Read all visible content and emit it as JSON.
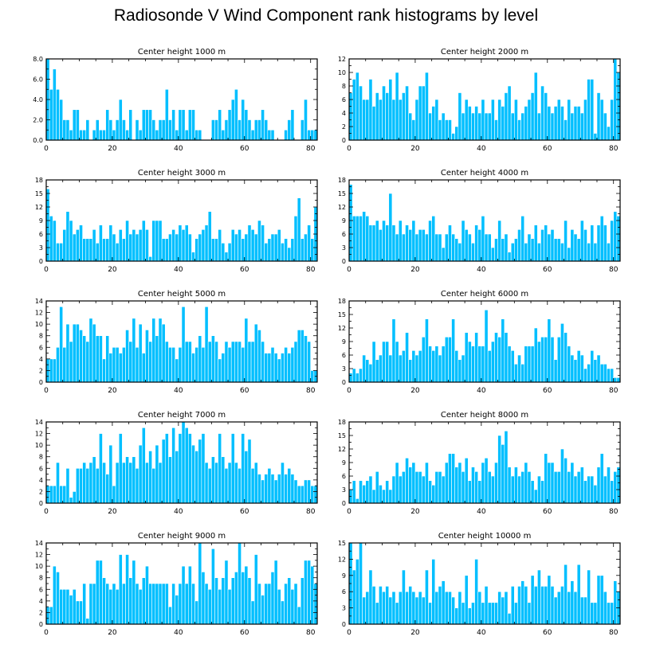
{
  "figure": {
    "title": "Radiosonde V Wind Component rank histograms by level"
  },
  "colors": {
    "bar": "#00BFFF",
    "bar_edge": "#FFFFFF",
    "axis": "#000000"
  },
  "chart_data": [
    {
      "type": "bar",
      "title": "Center height 1000 m",
      "xlabel": "",
      "ylabel": "",
      "xlim": [
        0,
        82
      ],
      "ylim": [
        0,
        8
      ],
      "xticks": [
        "0",
        "20",
        "40",
        "60",
        "80"
      ],
      "yticks": [
        "0.0",
        "2.0",
        "4.0",
        "6.0",
        "8.0"
      ],
      "values": [
        8,
        5,
        7,
        5,
        4,
        2,
        2,
        1,
        3,
        3,
        1,
        1,
        2,
        0,
        1,
        2,
        1,
        1,
        3,
        2,
        1,
        2,
        4,
        2,
        1,
        3,
        0,
        2,
        1,
        3,
        3,
        3,
        2,
        1,
        2,
        2,
        5,
        2,
        3,
        1,
        3,
        3,
        1,
        3,
        3,
        1,
        1,
        0,
        0,
        0,
        2,
        2,
        3,
        1,
        2,
        3,
        4,
        5,
        2,
        4,
        3,
        2,
        1,
        2,
        2,
        3,
        2,
        1,
        1,
        0,
        0,
        0,
        1,
        2,
        3,
        0,
        0,
        2,
        4,
        1,
        1,
        1
      ]
    },
    {
      "type": "bar",
      "title": "Center height 2000 m",
      "xlabel": "",
      "ylabel": "",
      "xlim": [
        0,
        82
      ],
      "ylim": [
        0,
        12
      ],
      "xticks": [
        "0",
        "20",
        "40",
        "60",
        "80"
      ],
      "yticks": [
        "0",
        "2",
        "4",
        "6",
        "8",
        "10",
        "12"
      ],
      "values": [
        7,
        9,
        10,
        8,
        6,
        6,
        9,
        5,
        7,
        6,
        8,
        7,
        9,
        6,
        10,
        6,
        7,
        8,
        4,
        3,
        6,
        8,
        8,
        10,
        4,
        5,
        6,
        3,
        4,
        3,
        3,
        1,
        2,
        7,
        4,
        6,
        5,
        4,
        5,
        4,
        6,
        4,
        4,
        6,
        3,
        6,
        5,
        7,
        8,
        4,
        6,
        3,
        4,
        5,
        6,
        7,
        10,
        4,
        8,
        7,
        5,
        4,
        5,
        6,
        5,
        3,
        6,
        4,
        5,
        5,
        4,
        6,
        9,
        9,
        1,
        7,
        6,
        4,
        2,
        6,
        12,
        10
      ]
    },
    {
      "type": "bar",
      "title": "Center height 3000 m",
      "xlabel": "",
      "ylabel": "",
      "xlim": [
        0,
        82
      ],
      "ylim": [
        0,
        18
      ],
      "xticks": [
        "0",
        "20",
        "40",
        "60",
        "80"
      ],
      "yticks": [
        "0",
        "3",
        "6",
        "9",
        "12",
        "15",
        "18"
      ],
      "values": [
        16,
        10,
        9,
        4,
        4,
        7,
        11,
        9,
        6,
        7,
        8,
        5,
        5,
        5,
        7,
        4,
        8,
        5,
        5,
        8,
        6,
        4,
        7,
        5,
        9,
        6,
        7,
        6,
        7,
        9,
        7,
        1,
        9,
        9,
        9,
        5,
        5,
        6,
        7,
        6,
        8,
        7,
        8,
        6,
        2,
        5,
        6,
        7,
        8,
        11,
        5,
        5,
        7,
        4,
        2,
        4,
        7,
        6,
        7,
        5,
        6,
        8,
        7,
        6,
        9,
        8,
        4,
        5,
        6,
        6,
        7,
        4,
        5,
        3,
        5,
        10,
        14,
        5,
        6,
        8,
        5,
        12
      ]
    },
    {
      "type": "bar",
      "title": "Center height 4000 m",
      "xlabel": "",
      "ylabel": "",
      "xlim": [
        0,
        82
      ],
      "ylim": [
        0,
        18
      ],
      "xticks": [
        "0",
        "20",
        "40",
        "60",
        "80"
      ],
      "yticks": [
        "0",
        "3",
        "6",
        "9",
        "12",
        "15",
        "18"
      ],
      "values": [
        17,
        10,
        10,
        10,
        11,
        10,
        8,
        8,
        9,
        7,
        9,
        8,
        15,
        8,
        6,
        9,
        6,
        8,
        7,
        9,
        6,
        7,
        7,
        6,
        9,
        10,
        6,
        6,
        3,
        6,
        8,
        6,
        5,
        4,
        9,
        7,
        6,
        4,
        8,
        7,
        10,
        6,
        6,
        3,
        5,
        9,
        5,
        6,
        2,
        4,
        5,
        7,
        10,
        4,
        6,
        5,
        8,
        4,
        7,
        8,
        6,
        7,
        5,
        5,
        4,
        9,
        3,
        7,
        6,
        5,
        9,
        7,
        4,
        8,
        4,
        8,
        10,
        8,
        4,
        9,
        11,
        10
      ]
    },
    {
      "type": "bar",
      "title": "Center height 5000 m",
      "xlabel": "",
      "ylabel": "",
      "xlim": [
        0,
        82
      ],
      "ylim": [
        0,
        14
      ],
      "xticks": [
        "0",
        "20",
        "40",
        "60",
        "80"
      ],
      "yticks": [
        "0",
        "2",
        "4",
        "6",
        "8",
        "10",
        "12",
        "14"
      ],
      "values": [
        4,
        4,
        4,
        6,
        13,
        6,
        10,
        7,
        10,
        10,
        9,
        8,
        7,
        11,
        10,
        8,
        8,
        4,
        8,
        5,
        6,
        6,
        5,
        6,
        9,
        7,
        11,
        6,
        10,
        5,
        9,
        7,
        11,
        8,
        11,
        10,
        7,
        6,
        6,
        4,
        6,
        13,
        7,
        7,
        5,
        6,
        8,
        6,
        13,
        7,
        8,
        7,
        4,
        5,
        7,
        6,
        7,
        7,
        7,
        6,
        11,
        7,
        7,
        10,
        9,
        7,
        5,
        5,
        6,
        5,
        4,
        5,
        6,
        5,
        6,
        7,
        9,
        9,
        8,
        7,
        2,
        2
      ]
    },
    {
      "type": "bar",
      "title": "Center height 6000 m",
      "xlabel": "",
      "ylabel": "",
      "xlim": [
        0,
        82
      ],
      "ylim": [
        0,
        18
      ],
      "xticks": [
        "0",
        "20",
        "40",
        "60",
        "80"
      ],
      "yticks": [
        "0",
        "3",
        "6",
        "9",
        "12",
        "15",
        "18"
      ],
      "values": [
        2,
        3,
        2,
        3,
        6,
        5,
        4,
        9,
        5,
        6,
        9,
        9,
        6,
        14,
        9,
        6,
        7,
        11,
        5,
        7,
        6,
        7,
        10,
        14,
        8,
        7,
        8,
        6,
        8,
        10,
        10,
        14,
        7,
        5,
        6,
        11,
        9,
        8,
        11,
        8,
        8,
        16,
        7,
        9,
        11,
        10,
        14,
        11,
        8,
        7,
        4,
        6,
        4,
        8,
        8,
        8,
        12,
        9,
        10,
        10,
        14,
        10,
        5,
        10,
        13,
        11,
        8,
        6,
        5,
        7,
        6,
        3,
        4,
        7,
        5,
        6,
        4,
        4,
        3,
        3,
        1,
        1
      ]
    },
    {
      "type": "bar",
      "title": "Center height 7000 m",
      "xlabel": "",
      "ylabel": "",
      "xlim": [
        0,
        82
      ],
      "ylim": [
        0,
        14
      ],
      "xticks": [
        "0",
        "20",
        "40",
        "60",
        "80"
      ],
      "yticks": [
        "0",
        "2",
        "4",
        "6",
        "8",
        "10",
        "12",
        "14"
      ],
      "values": [
        3,
        3,
        3,
        7,
        3,
        3,
        6,
        1,
        2,
        6,
        6,
        7,
        6,
        7,
        8,
        6,
        12,
        7,
        5,
        10,
        3,
        7,
        12,
        7,
        8,
        7,
        8,
        6,
        10,
        13,
        7,
        9,
        6,
        10,
        7,
        11,
        12,
        8,
        13,
        9,
        12,
        14,
        13,
        12,
        10,
        9,
        11,
        12,
        7,
        6,
        8,
        7,
        12,
        8,
        6,
        7,
        12,
        7,
        6,
        12,
        9,
        11,
        6,
        7,
        5,
        4,
        5,
        6,
        5,
        4,
        5,
        7,
        5,
        6,
        5,
        4,
        3,
        3,
        4,
        4,
        3,
        3
      ]
    },
    {
      "type": "bar",
      "title": "Center height 8000 m",
      "xlabel": "",
      "ylabel": "",
      "xlim": [
        0,
        82
      ],
      "ylim": [
        0,
        18
      ],
      "xticks": [
        "0",
        "20",
        "40",
        "60",
        "80"
      ],
      "yticks": [
        "0",
        "3",
        "6",
        "9",
        "12",
        "15",
        "18"
      ],
      "values": [
        3,
        5,
        1,
        5,
        4,
        5,
        6,
        3,
        7,
        4,
        3,
        5,
        3,
        6,
        9,
        6,
        7,
        10,
        8,
        9,
        7,
        7,
        6,
        9,
        5,
        4,
        7,
        7,
        6,
        9,
        11,
        11,
        8,
        9,
        7,
        10,
        5,
        8,
        7,
        5,
        9,
        10,
        7,
        6,
        9,
        15,
        13,
        16,
        8,
        6,
        8,
        6,
        7,
        9,
        7,
        5,
        3,
        6,
        5,
        11,
        9,
        9,
        7,
        7,
        12,
        10,
        7,
        9,
        6,
        7,
        8,
        5,
        6,
        6,
        4,
        8,
        11,
        6,
        8,
        5,
        7,
        8
      ]
    },
    {
      "type": "bar",
      "title": "Center height 9000 m",
      "xlabel": "",
      "ylabel": "",
      "xlim": [
        0,
        82
      ],
      "ylim": [
        0,
        14
      ],
      "xticks": [
        "0",
        "20",
        "40",
        "60",
        "80"
      ],
      "yticks": [
        "0",
        "2",
        "4",
        "6",
        "8",
        "10",
        "12",
        "14"
      ],
      "values": [
        3,
        3,
        10,
        9,
        6,
        6,
        6,
        5,
        6,
        4,
        4,
        7,
        1,
        7,
        7,
        11,
        11,
        8,
        7,
        6,
        7,
        6,
        12,
        7,
        12,
        8,
        11,
        7,
        6,
        8,
        10,
        7,
        7,
        7,
        7,
        7,
        7,
        3,
        7,
        5,
        7,
        10,
        7,
        10,
        7,
        4,
        14,
        9,
        7,
        6,
        13,
        8,
        6,
        8,
        11,
        6,
        8,
        9,
        14,
        9,
        10,
        8,
        4,
        12,
        7,
        5,
        7,
        7,
        9,
        11,
        6,
        4,
        7,
        8,
        6,
        7,
        3,
        8,
        11,
        11,
        10,
        7
      ]
    },
    {
      "type": "bar",
      "title": "Center height 10000 m",
      "xlabel": "",
      "ylabel": "",
      "xlim": [
        0,
        82
      ],
      "ylim": [
        0,
        15
      ],
      "xticks": [
        "0",
        "20",
        "40",
        "60",
        "80"
      ],
      "yticks": [
        "0",
        "3",
        "6",
        "9",
        "12",
        "15"
      ],
      "values": [
        15,
        10,
        12,
        15,
        5,
        6,
        10,
        7,
        4,
        7,
        6,
        7,
        5,
        6,
        4,
        6,
        10,
        6,
        7,
        6,
        5,
        6,
        5,
        10,
        4,
        12,
        6,
        7,
        8,
        6,
        6,
        5,
        3,
        6,
        4,
        9,
        3,
        4,
        12,
        6,
        4,
        7,
        4,
        4,
        4,
        6,
        5,
        6,
        2,
        7,
        4,
        7,
        8,
        7,
        4,
        9,
        7,
        10,
        7,
        7,
        9,
        7,
        5,
        6,
        7,
        11,
        6,
        8,
        6,
        11,
        5,
        5,
        10,
        4,
        4,
        9,
        9,
        6,
        4,
        4,
        8,
        6
      ]
    }
  ]
}
